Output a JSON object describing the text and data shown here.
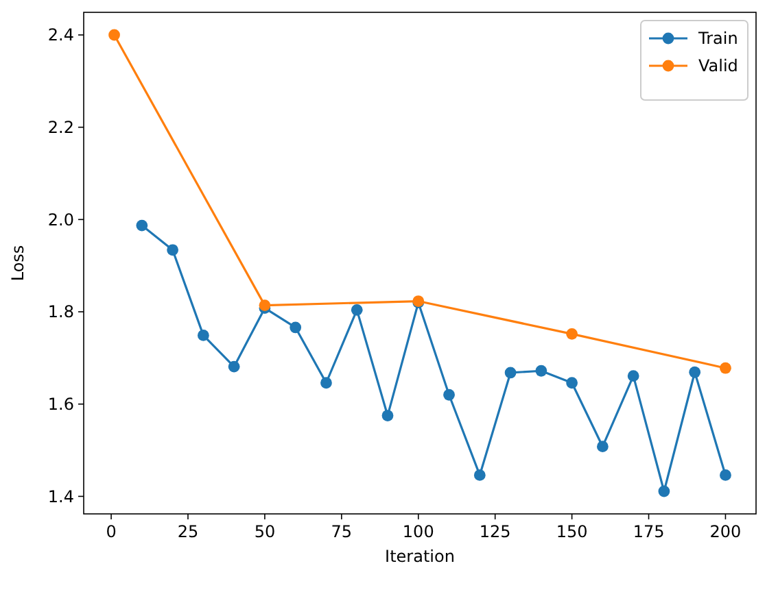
{
  "chart_data": {
    "type": "line",
    "xlabel": "Iteration",
    "ylabel": "Loss",
    "xlim": [
      -8.95,
      209.95
    ],
    "ylim": [
      1.362,
      2.449
    ],
    "xticks": [
      0,
      25,
      50,
      75,
      100,
      125,
      150,
      175,
      200
    ],
    "yticks": [
      {
        "value": 1.4,
        "label": "1.4"
      },
      {
        "value": 1.6,
        "label": "1.6"
      },
      {
        "value": 1.8,
        "label": "1.8"
      },
      {
        "value": 2.0,
        "label": "2.0"
      },
      {
        "value": 2.2,
        "label": "2.2"
      },
      {
        "value": 2.4,
        "label": "2.4"
      }
    ],
    "marker": "circle",
    "line_style": "solid",
    "legend": "top right",
    "grid": false,
    "series": [
      {
        "name": "Train",
        "color": "#1f77b4",
        "x": [
          10,
          20,
          30,
          40,
          50,
          60,
          70,
          80,
          90,
          100,
          110,
          120,
          130,
          140,
          150,
          160,
          170,
          180,
          190,
          200
        ],
        "values": [
          1.987,
          1.934,
          1.749,
          1.681,
          1.808,
          1.766,
          1.646,
          1.804,
          1.575,
          1.82,
          1.62,
          1.446,
          1.668,
          1.672,
          1.646,
          1.508,
          1.661,
          1.411,
          1.669,
          1.446
        ]
      },
      {
        "name": "Valid",
        "color": "#ff7f0e",
        "x": [
          1,
          50,
          100,
          150,
          200
        ],
        "values": [
          2.4,
          1.814,
          1.823,
          1.752,
          1.678
        ]
      }
    ]
  }
}
